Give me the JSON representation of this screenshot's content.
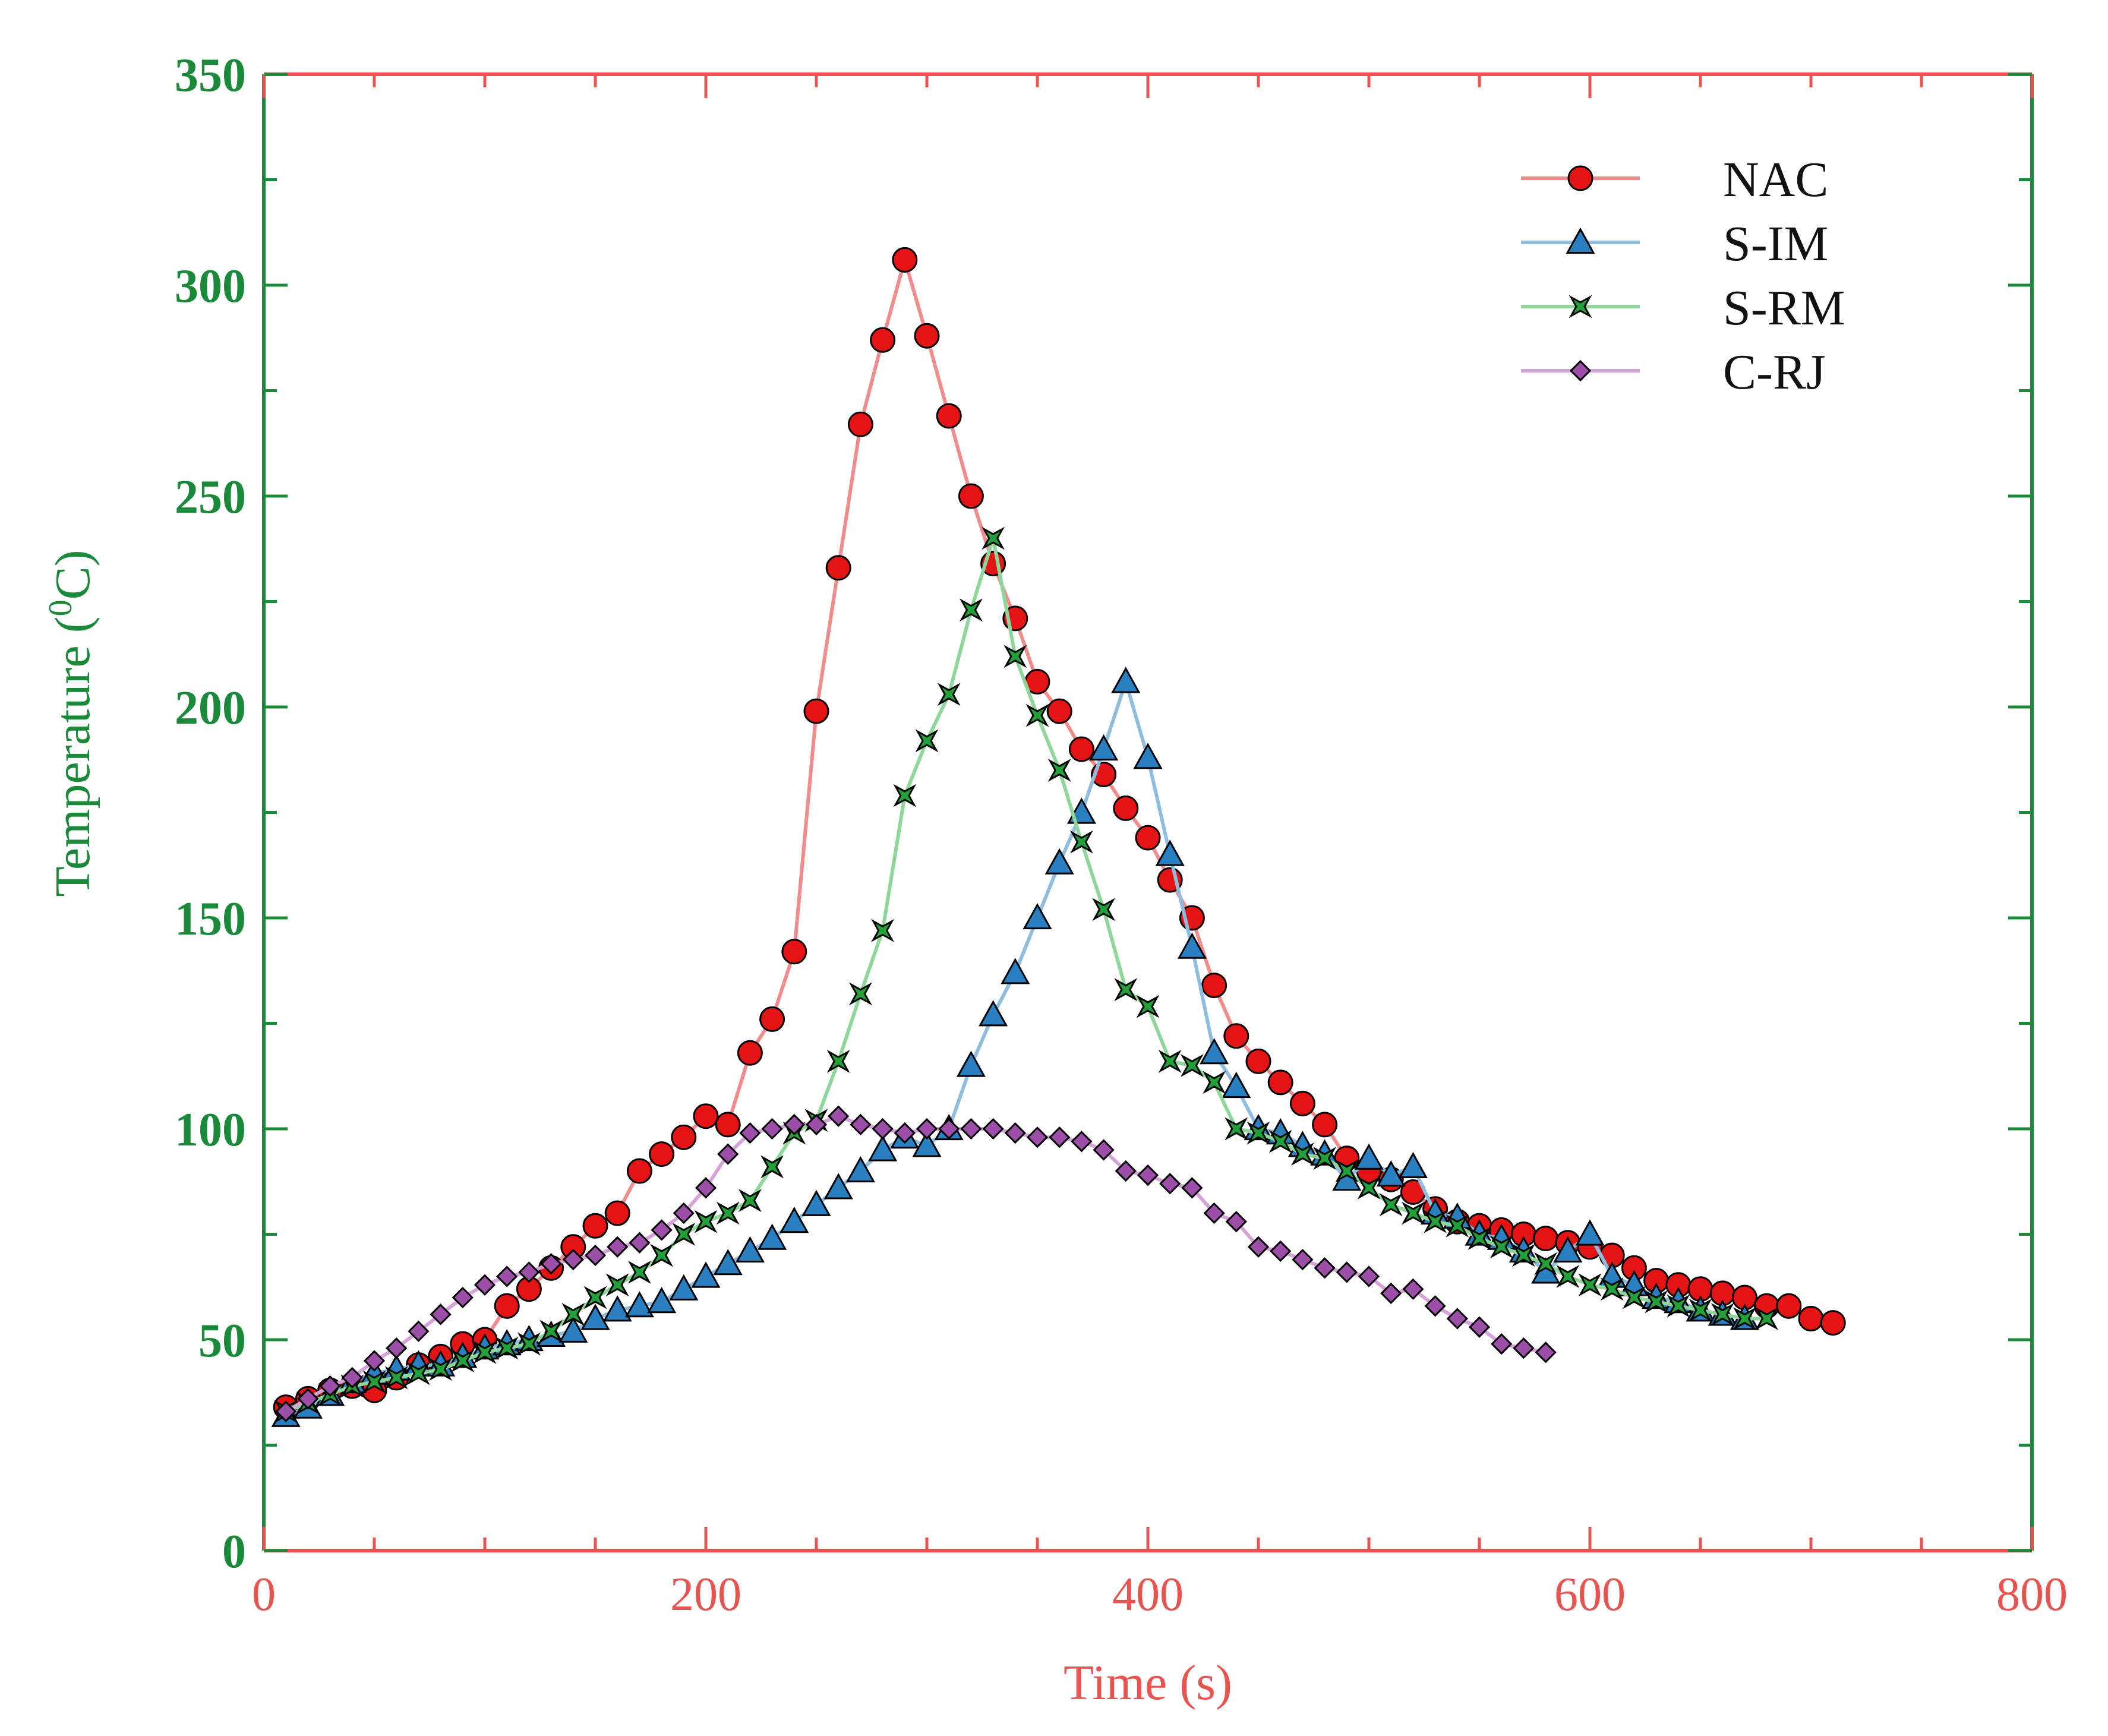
{
  "chart_data": {
    "type": "line",
    "xlabel": "Time (s)",
    "ylabel_main": "Temperature (",
    "ylabel_sup": "0",
    "ylabel_end": "C)",
    "xlim": [
      0,
      800
    ],
    "ylim": [
      0,
      350
    ],
    "x_ticks": [
      0,
      200,
      400,
      600,
      800
    ],
    "y_ticks": [
      0,
      50,
      100,
      150,
      200,
      250,
      300,
      350
    ],
    "legend_position": "top-right",
    "grid": false,
    "colors": {
      "x_axis": "#e8534f",
      "y_axis": "#1a8a3a"
    },
    "series": [
      {
        "name": "NAC",
        "marker": "circle",
        "line_color": "#f28b8b",
        "marker_color": "#e41414",
        "points": [
          [
            10,
            34
          ],
          [
            20,
            36
          ],
          [
            30,
            38
          ],
          [
            40,
            39
          ],
          [
            50,
            38
          ],
          [
            60,
            41
          ],
          [
            70,
            44
          ],
          [
            80,
            46
          ],
          [
            90,
            49
          ],
          [
            100,
            50
          ],
          [
            110,
            58
          ],
          [
            120,
            62
          ],
          [
            130,
            67
          ],
          [
            140,
            72
          ],
          [
            150,
            77
          ],
          [
            160,
            80
          ],
          [
            170,
            90
          ],
          [
            180,
            94
          ],
          [
            190,
            98
          ],
          [
            200,
            103
          ],
          [
            210,
            101
          ],
          [
            220,
            118
          ],
          [
            230,
            126
          ],
          [
            240,
            142
          ],
          [
            250,
            199
          ],
          [
            260,
            233
          ],
          [
            270,
            267
          ],
          [
            280,
            287
          ],
          [
            290,
            306
          ],
          [
            300,
            288
          ],
          [
            310,
            269
          ],
          [
            320,
            250
          ],
          [
            330,
            234
          ],
          [
            340,
            221
          ],
          [
            350,
            206
          ],
          [
            360,
            199
          ],
          [
            370,
            190
          ],
          [
            380,
            184
          ],
          [
            390,
            176
          ],
          [
            400,
            169
          ],
          [
            410,
            159
          ],
          [
            420,
            150
          ],
          [
            430,
            134
          ],
          [
            440,
            122
          ],
          [
            450,
            116
          ],
          [
            460,
            111
          ],
          [
            470,
            106
          ],
          [
            480,
            101
          ],
          [
            490,
            93
          ],
          [
            500,
            90
          ],
          [
            510,
            88
          ],
          [
            520,
            85
          ],
          [
            530,
            81
          ],
          [
            540,
            78
          ],
          [
            550,
            77
          ],
          [
            560,
            76
          ],
          [
            570,
            75
          ],
          [
            580,
            74
          ],
          [
            590,
            73
          ],
          [
            600,
            72
          ],
          [
            610,
            70
          ],
          [
            620,
            67
          ],
          [
            630,
            64
          ],
          [
            640,
            63
          ],
          [
            650,
            62
          ],
          [
            660,
            61
          ],
          [
            670,
            60
          ],
          [
            680,
            58
          ],
          [
            690,
            58
          ],
          [
            700,
            55
          ],
          [
            710,
            54
          ]
        ]
      },
      {
        "name": "S-IM",
        "marker": "triangle",
        "line_color": "#8fbde0",
        "marker_color": "#2a7fc0",
        "points": [
          [
            10,
            32
          ],
          [
            20,
            34
          ],
          [
            30,
            37
          ],
          [
            40,
            40
          ],
          [
            50,
            42
          ],
          [
            60,
            43
          ],
          [
            70,
            44
          ],
          [
            80,
            44
          ],
          [
            90,
            46
          ],
          [
            100,
            48
          ],
          [
            110,
            49
          ],
          [
            120,
            50
          ],
          [
            130,
            51
          ],
          [
            140,
            52
          ],
          [
            150,
            55
          ],
          [
            160,
            57
          ],
          [
            170,
            58
          ],
          [
            180,
            59
          ],
          [
            190,
            62
          ],
          [
            200,
            65
          ],
          [
            210,
            68
          ],
          [
            220,
            71
          ],
          [
            230,
            74
          ],
          [
            240,
            78
          ],
          [
            250,
            82
          ],
          [
            260,
            86
          ],
          [
            270,
            90
          ],
          [
            280,
            95
          ],
          [
            290,
            98
          ],
          [
            300,
            96
          ],
          [
            310,
            100
          ],
          [
            320,
            115
          ],
          [
            330,
            127
          ],
          [
            340,
            137
          ],
          [
            350,
            150
          ],
          [
            360,
            163
          ],
          [
            370,
            175
          ],
          [
            380,
            190
          ],
          [
            390,
            206
          ],
          [
            400,
            188
          ],
          [
            410,
            165
          ],
          [
            420,
            143
          ],
          [
            430,
            118
          ],
          [
            440,
            110
          ],
          [
            450,
            100
          ],
          [
            460,
            99
          ],
          [
            470,
            96
          ],
          [
            480,
            94
          ],
          [
            490,
            88
          ],
          [
            500,
            93
          ],
          [
            510,
            89
          ],
          [
            520,
            91
          ],
          [
            530,
            80
          ],
          [
            540,
            79
          ],
          [
            550,
            75
          ],
          [
            560,
            74
          ],
          [
            570,
            71
          ],
          [
            580,
            66
          ],
          [
            590,
            71
          ],
          [
            600,
            75
          ],
          [
            610,
            65
          ],
          [
            620,
            63
          ],
          [
            630,
            60
          ],
          [
            640,
            59
          ],
          [
            650,
            57
          ],
          [
            660,
            56
          ],
          [
            670,
            55
          ]
        ]
      },
      {
        "name": "S-RM",
        "marker": "star",
        "line_color": "#8fd69a",
        "marker_color": "#22a13a",
        "points": [
          [
            10,
            33
          ],
          [
            20,
            35
          ],
          [
            30,
            37
          ],
          [
            40,
            39
          ],
          [
            50,
            40
          ],
          [
            60,
            41
          ],
          [
            70,
            42
          ],
          [
            80,
            43
          ],
          [
            90,
            45
          ],
          [
            100,
            47
          ],
          [
            110,
            48
          ],
          [
            120,
            49
          ],
          [
            130,
            52
          ],
          [
            140,
            56
          ],
          [
            150,
            60
          ],
          [
            160,
            63
          ],
          [
            170,
            66
          ],
          [
            180,
            70
          ],
          [
            190,
            75
          ],
          [
            200,
            78
          ],
          [
            210,
            80
          ],
          [
            220,
            83
          ],
          [
            230,
            91
          ],
          [
            240,
            99
          ],
          [
            250,
            102
          ],
          [
            260,
            116
          ],
          [
            270,
            132
          ],
          [
            280,
            147
          ],
          [
            290,
            179
          ],
          [
            300,
            192
          ],
          [
            310,
            203
          ],
          [
            320,
            223
          ],
          [
            330,
            240
          ],
          [
            340,
            212
          ],
          [
            350,
            198
          ],
          [
            360,
            185
          ],
          [
            370,
            168
          ],
          [
            380,
            152
          ],
          [
            390,
            133
          ],
          [
            400,
            129
          ],
          [
            410,
            116
          ],
          [
            420,
            115
          ],
          [
            430,
            111
          ],
          [
            440,
            100
          ],
          [
            450,
            99
          ],
          [
            460,
            97
          ],
          [
            470,
            94
          ],
          [
            480,
            93
          ],
          [
            490,
            90
          ],
          [
            500,
            86
          ],
          [
            510,
            82
          ],
          [
            520,
            80
          ],
          [
            530,
            78
          ],
          [
            540,
            77
          ],
          [
            550,
            74
          ],
          [
            560,
            72
          ],
          [
            570,
            70
          ],
          [
            580,
            68
          ],
          [
            590,
            65
          ],
          [
            600,
            63
          ],
          [
            610,
            62
          ],
          [
            620,
            60
          ],
          [
            630,
            59
          ],
          [
            640,
            58
          ],
          [
            650,
            57
          ],
          [
            660,
            56
          ],
          [
            670,
            55
          ],
          [
            680,
            55
          ]
        ]
      },
      {
        "name": "C-RJ",
        "marker": "diamond",
        "line_color": "#d6a3d8",
        "marker_color": "#9b4fa6",
        "points": [
          [
            10,
            33
          ],
          [
            20,
            36
          ],
          [
            30,
            39
          ],
          [
            40,
            41
          ],
          [
            50,
            45
          ],
          [
            60,
            48
          ],
          [
            70,
            52
          ],
          [
            80,
            56
          ],
          [
            90,
            60
          ],
          [
            100,
            63
          ],
          [
            110,
            65
          ],
          [
            120,
            66
          ],
          [
            130,
            68
          ],
          [
            140,
            69
          ],
          [
            150,
            70
          ],
          [
            160,
            72
          ],
          [
            170,
            73
          ],
          [
            180,
            76
          ],
          [
            190,
            80
          ],
          [
            200,
            86
          ],
          [
            210,
            94
          ],
          [
            220,
            99
          ],
          [
            230,
            100
          ],
          [
            240,
            101
          ],
          [
            250,
            101
          ],
          [
            260,
            103
          ],
          [
            270,
            101
          ],
          [
            280,
            100
          ],
          [
            290,
            99
          ],
          [
            300,
            100
          ],
          [
            310,
            100
          ],
          [
            320,
            100
          ],
          [
            330,
            100
          ],
          [
            340,
            99
          ],
          [
            350,
            98
          ],
          [
            360,
            98
          ],
          [
            370,
            97
          ],
          [
            380,
            95
          ],
          [
            390,
            90
          ],
          [
            400,
            89
          ],
          [
            410,
            87
          ],
          [
            420,
            86
          ],
          [
            430,
            80
          ],
          [
            440,
            78
          ],
          [
            450,
            72
          ],
          [
            460,
            71
          ],
          [
            470,
            69
          ],
          [
            480,
            67
          ],
          [
            490,
            66
          ],
          [
            500,
            65
          ],
          [
            510,
            61
          ],
          [
            520,
            62
          ],
          [
            530,
            58
          ],
          [
            540,
            55
          ],
          [
            550,
            53
          ],
          [
            560,
            49
          ],
          [
            570,
            48
          ],
          [
            580,
            47
          ]
        ]
      }
    ]
  }
}
